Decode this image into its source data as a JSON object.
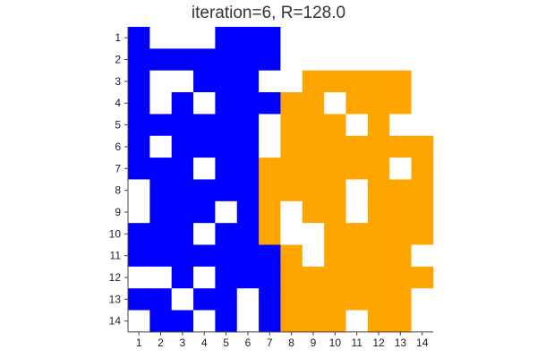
{
  "chart_data": {
    "type": "heatmap",
    "title": "iteration=6, R=128.0",
    "xlabel": "",
    "ylabel": "",
    "x_ticks": [
      "1",
      "2",
      "3",
      "4",
      "5",
      "6",
      "7",
      "8",
      "9",
      "10",
      "11",
      "12",
      "13",
      "14"
    ],
    "y_ticks": [
      "1",
      "2",
      "3",
      "4",
      "5",
      "6",
      "7",
      "8",
      "9",
      "10",
      "11",
      "12",
      "13",
      "14"
    ],
    "colors": {
      "B": "#0000ff",
      "O": "#ffa500",
      "W": "#ffffff"
    },
    "legend": {
      "B": "blue",
      "O": "orange",
      "W": "empty"
    },
    "grid": false,
    "rows": [
      "BWWWBBBWWWWWWW",
      "BBBBBBBWWWWWWW",
      "BWWBBBWWOOOOOW",
      "BWBWBBBOOWOOOW",
      "BBBBBBWOOOWOWW",
      "BWBBBBWOOOOOOO",
      "BBBWBBOOOOOOWO",
      "WBBBBBOOOOWOOO",
      "WBBBWBOWOOWOOO",
      "BBBWBBOWWOOOOO",
      "BBBBBBBOWOOOOW",
      "WWBWBBBOOOOOOO",
      "BBWBBWBOOOOOOW",
      "WBBWBWBOOOWOOW"
    ]
  }
}
